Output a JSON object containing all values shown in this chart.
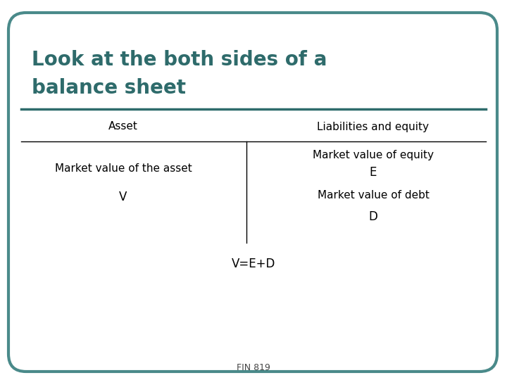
{
  "title_line1": "Look at the both sides of a",
  "title_line2": "balance sheet",
  "title_color": "#2E6B6B",
  "background_color": "#FFFFFF",
  "border_color": "#4A8A8A",
  "separator_color": "#2E6B6B",
  "col_header_left": "Asset",
  "col_header_right": "Liabilities and equity",
  "left_cell_line1": "Market value of the asset",
  "left_cell_line2": "V",
  "right_cell_line1": "Market value of equity",
  "right_cell_line2": "E",
  "right_cell_line3": "Market value of debt",
  "right_cell_line4": "D",
  "equation": "V=E+D",
  "footer": "FIN 819",
  "title_fontsize": 20,
  "body_fontsize": 11,
  "footer_fontsize": 9
}
